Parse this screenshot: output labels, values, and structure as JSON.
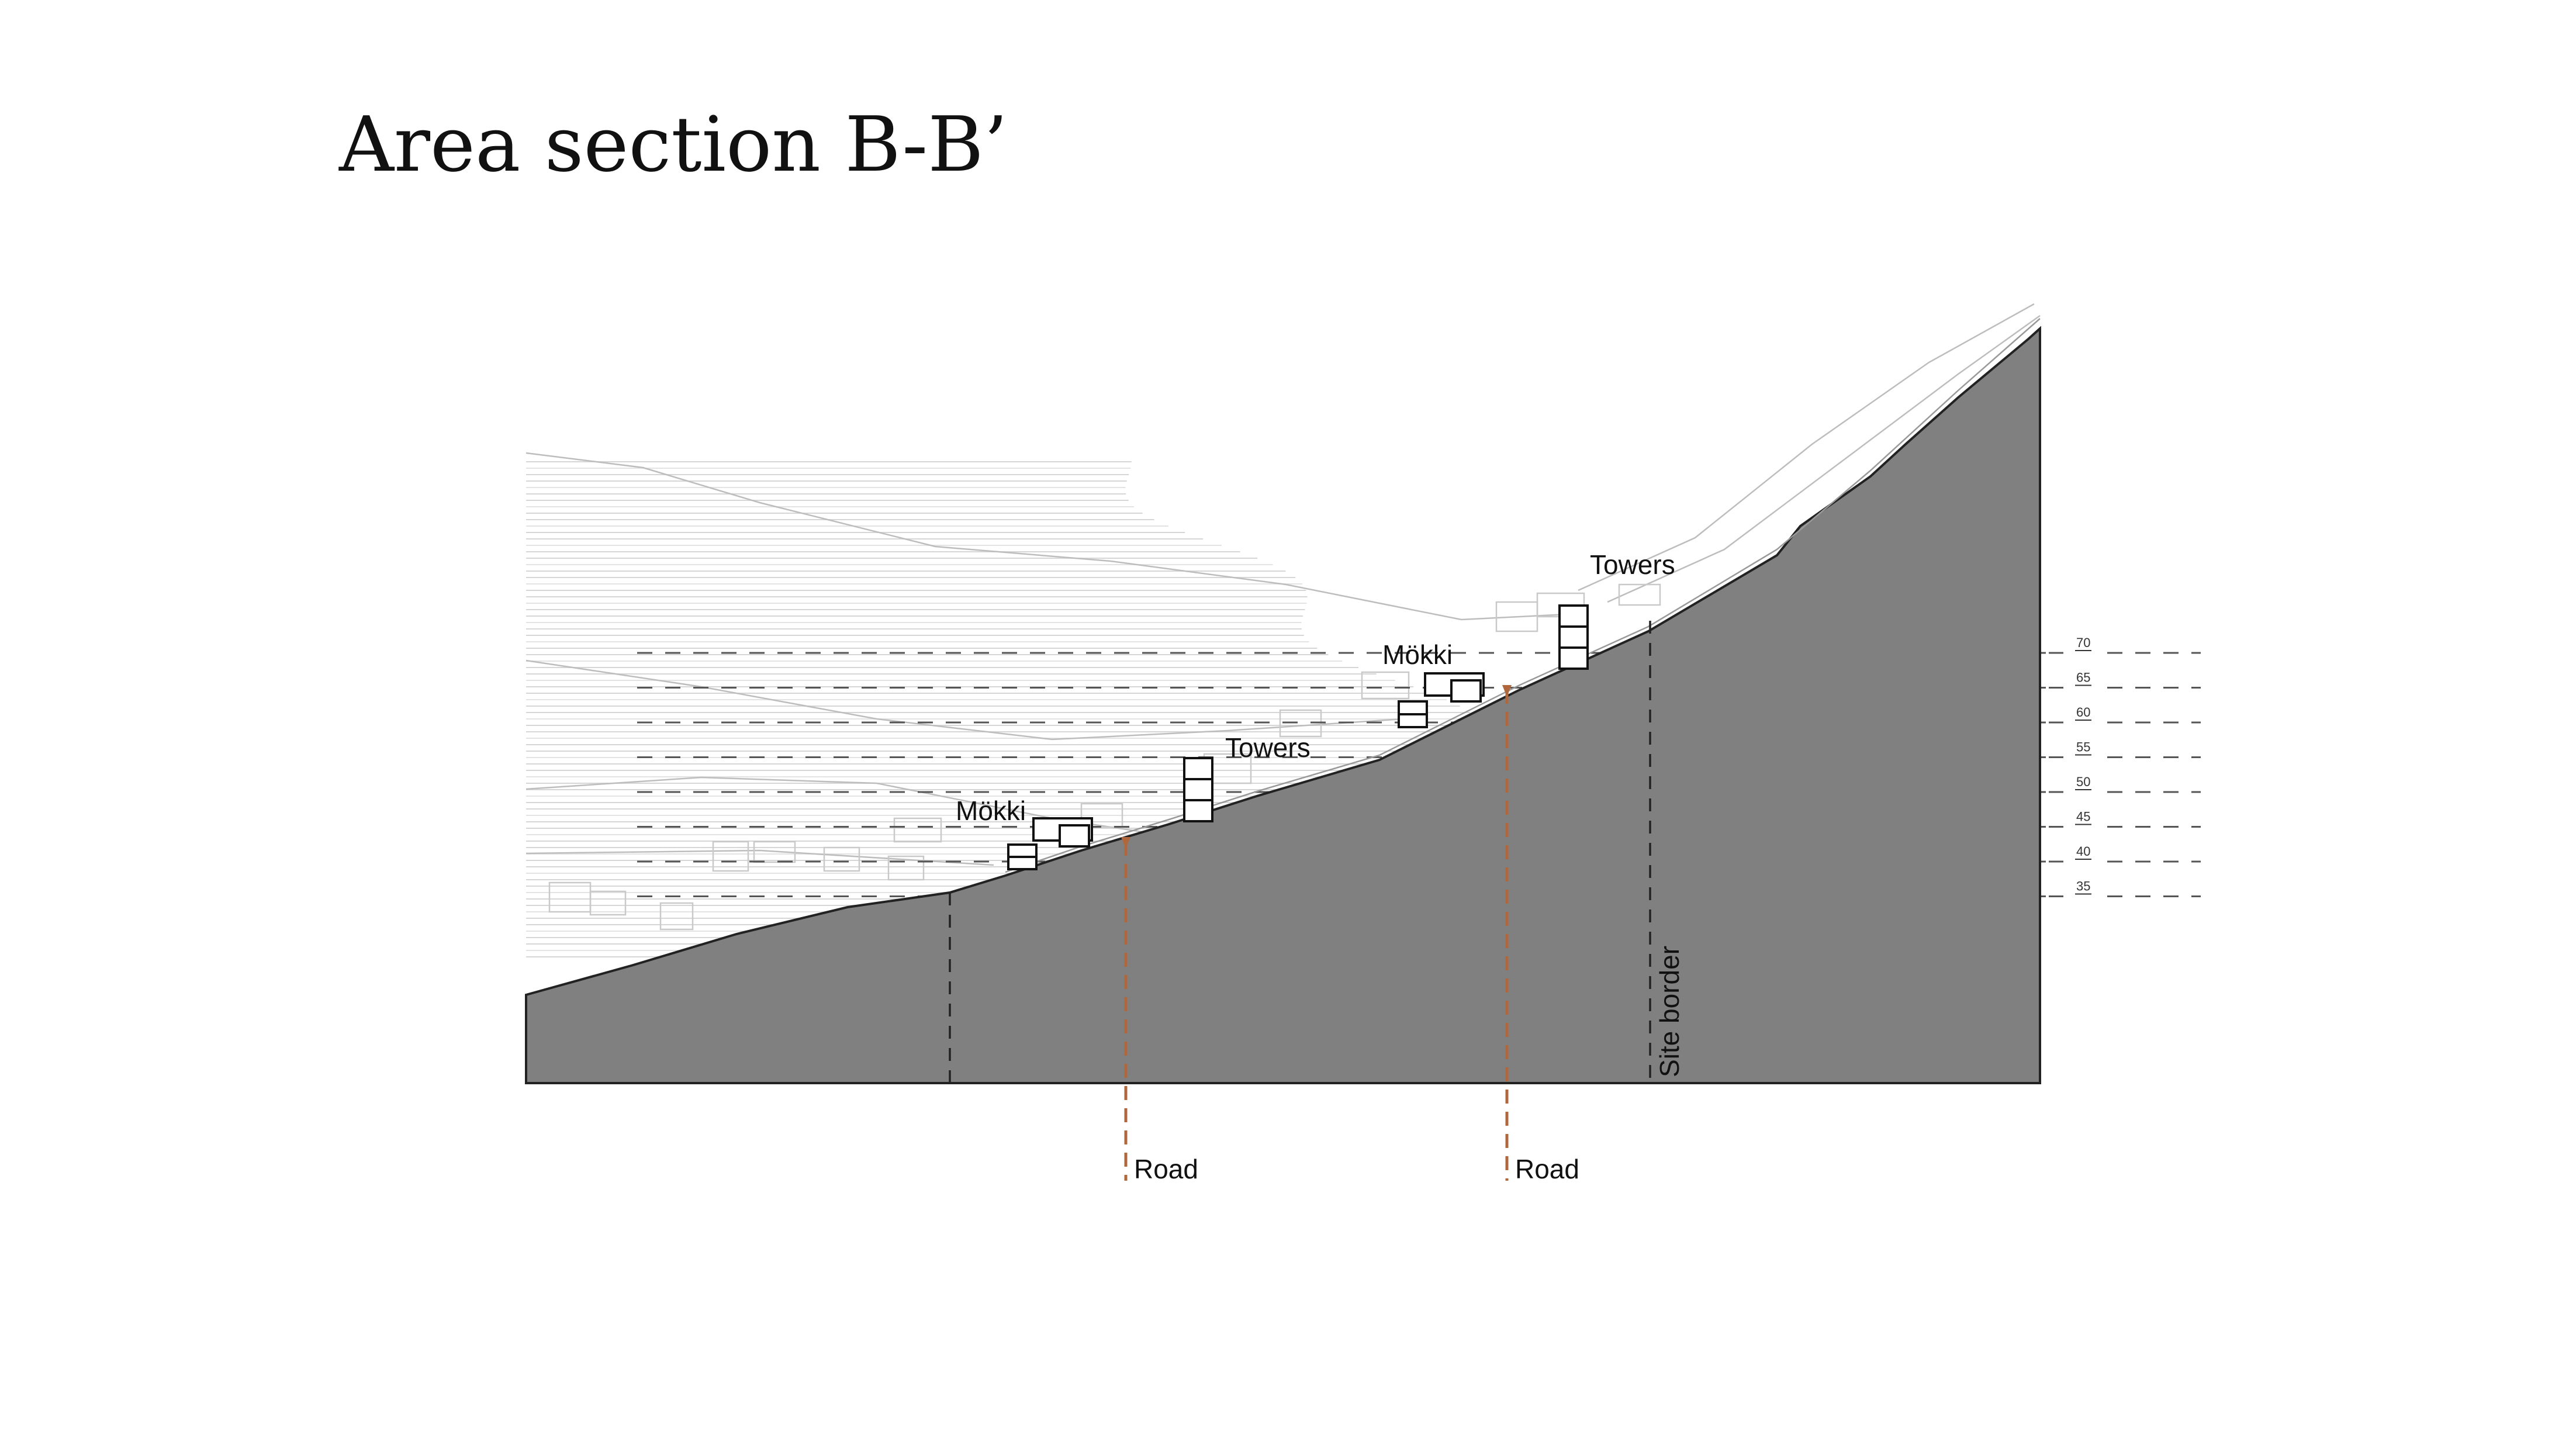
{
  "title": "Area section B-B’",
  "elevation_markers": [
    "70",
    "65",
    "60",
    "55",
    "50",
    "45",
    "40",
    "35"
  ],
  "labels": {
    "mokki_lower": "Mökki",
    "towers_lower": "Towers",
    "mokki_upper": "Mökki",
    "towers_upper": "Towers",
    "road_left": "Road",
    "road_right": "Road",
    "site_border": "Site border"
  },
  "colors": {
    "terrain": "#808080",
    "road": "#b0673c",
    "guide": "#555555",
    "background_lines": "#cfcfcf"
  }
}
